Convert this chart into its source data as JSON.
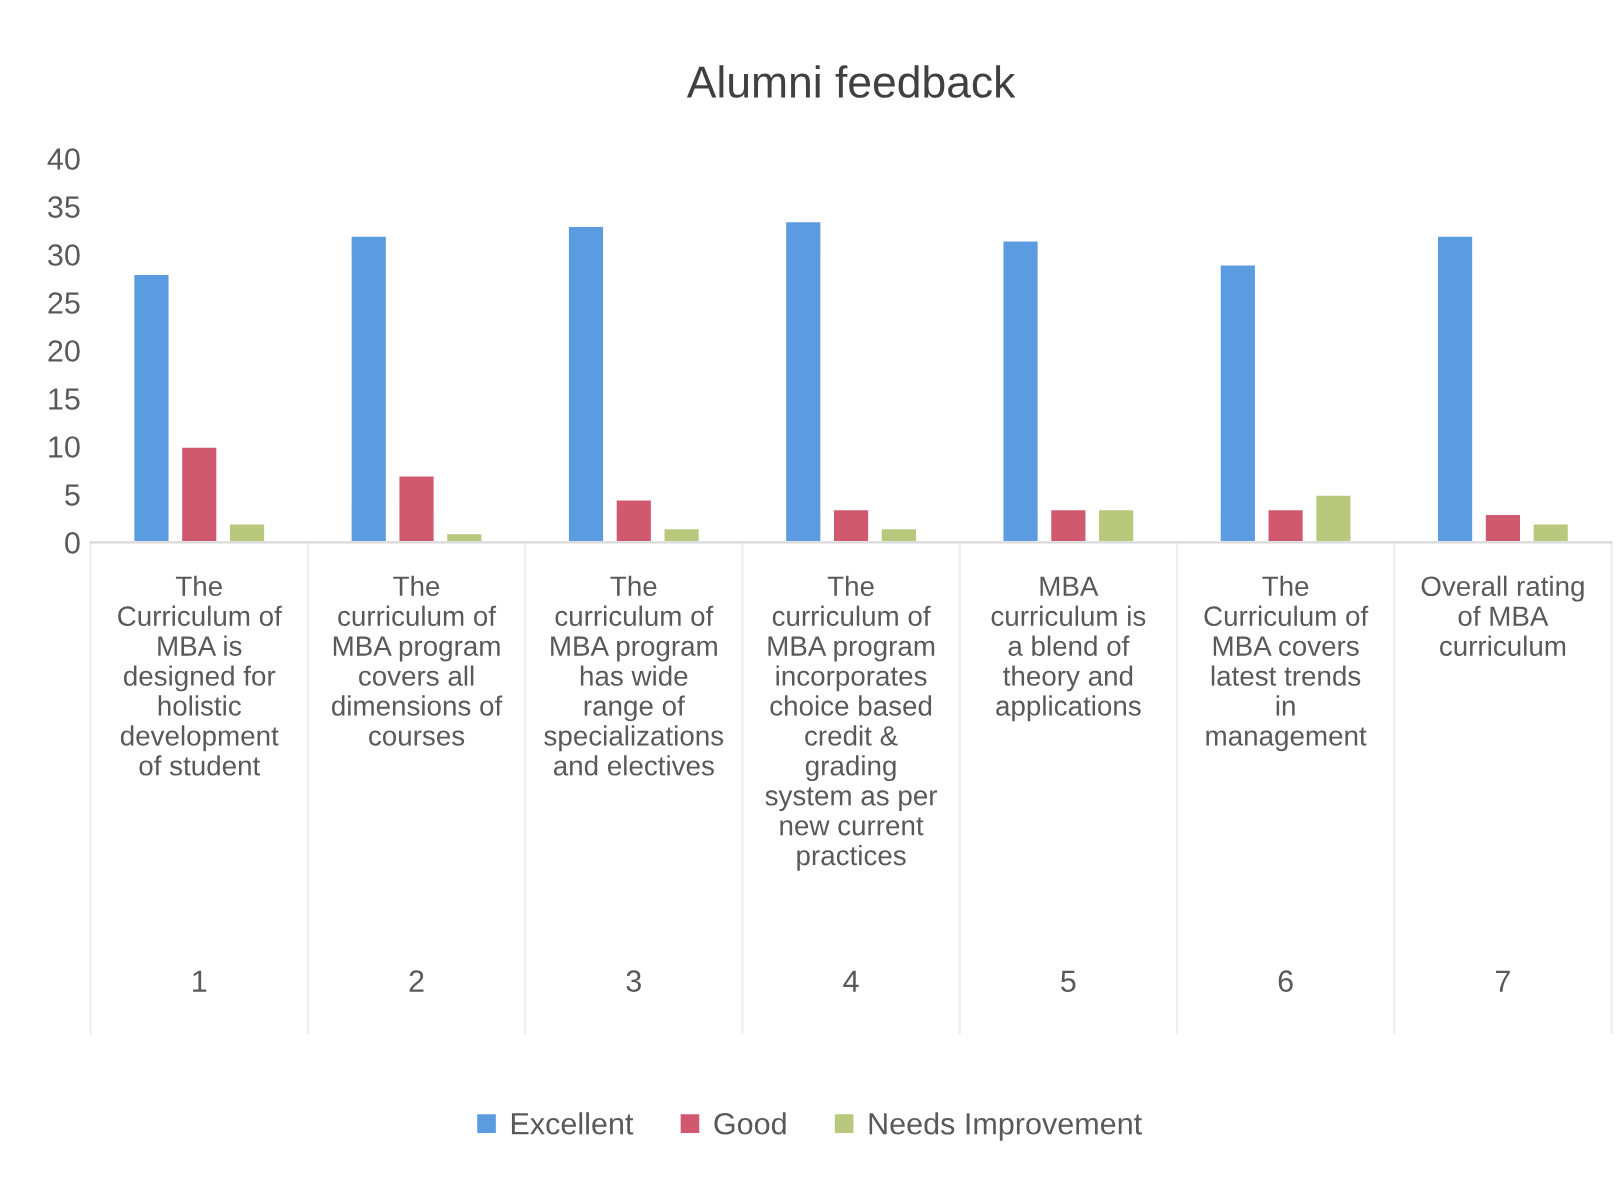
{
  "chart_data": {
    "type": "bar",
    "title": "Alumni feedback",
    "categories": [
      "The\nCurriculum of\nMBA is\ndesigned for\nholistic\ndevelopment\nof student",
      "The\ncurriculum of\nMBA program\ncovers all\ndimensions of\ncourses",
      "The\ncurriculum of\nMBA program\nhas wide\nrange of\nspecializations\nand electives",
      "The\ncurriculum of\nMBA program\nincorporates\nchoice based\ncredit &\ngrading\nsystem as per\nnew current\npractices",
      "MBA\ncurriculum is\na blend of\ntheory and\napplications",
      "The\nCurriculum of\nMBA covers\nlatest trends\nin\nmanagement",
      "Overall rating\nof MBA\ncurriculum"
    ],
    "series": [
      {
        "name": "Excellent",
        "color": "#5b9be0",
        "values": [
          28,
          32,
          33,
          33.5,
          31.5,
          29,
          32
        ]
      },
      {
        "name": "Good",
        "color": "#d0586f",
        "values": [
          10,
          7,
          4.5,
          3.5,
          3.5,
          3.5,
          3
        ]
      },
      {
        "name": "Needs Improvement",
        "color": "#b8c97e",
        "values": [
          2,
          1,
          1.5,
          1.5,
          3.5,
          5,
          2
        ]
      }
    ],
    "annotations": [
      "1",
      "2",
      "3",
      "4",
      "5",
      "6",
      "7"
    ],
    "ylim": [
      0,
      40
    ],
    "yticks": [
      0,
      5,
      10,
      15,
      20,
      25,
      30,
      35,
      40
    ],
    "grid": false,
    "legend": "bottom"
  }
}
